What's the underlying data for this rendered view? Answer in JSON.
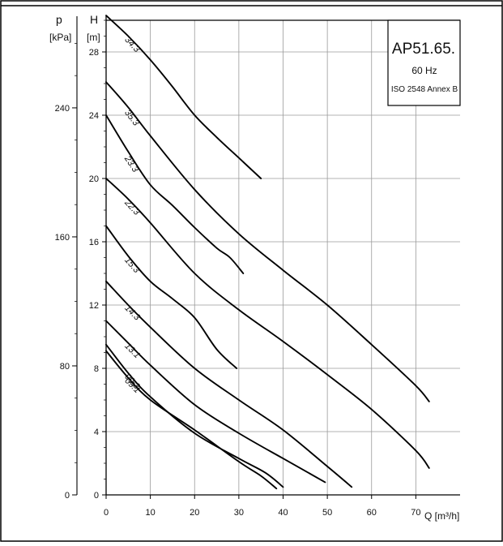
{
  "chart_data": {
    "type": "line",
    "title": "AP51.65.",
    "subtitle_lines": [
      "60 Hz",
      "ISO 2548 Annex B"
    ],
    "xlabel": "Q [m³/h]",
    "ylabel_left": {
      "sym": "p",
      "unit": "[kPa]"
    },
    "ylabel_right": {
      "sym": "H",
      "unit": "[m]"
    },
    "x_ticks": [
      "0",
      "10",
      "20",
      "30",
      "40",
      "50",
      "60",
      "70"
    ],
    "h_ticks": [
      "0",
      "4",
      "8",
      "12",
      "16",
      "20",
      "24",
      "28"
    ],
    "p_ticks": [
      "0",
      "80",
      "160",
      "240"
    ],
    "xlim": [
      0,
      80
    ],
    "ylim": [
      0,
      30
    ],
    "grid": true,
    "series": [
      {
        "name": "34.3",
        "x": [
          0,
          5,
          10,
          15,
          20,
          25,
          30,
          35
        ],
        "y": [
          30.3,
          29.0,
          27.5,
          25.8,
          24.0,
          22.6,
          21.3,
          20.0
        ]
      },
      {
        "name": "35.3",
        "x": [
          0,
          5,
          10,
          20,
          30,
          40,
          50,
          60,
          70,
          73
        ],
        "y": [
          26.1,
          24.5,
          22.7,
          19.3,
          16.5,
          14.2,
          12.0,
          9.5,
          6.9,
          5.9
        ]
      },
      {
        "name": "23.3",
        "x": [
          0,
          5,
          10,
          15,
          20,
          25,
          28,
          31
        ],
        "y": [
          24.0,
          21.7,
          19.6,
          18.3,
          16.9,
          15.6,
          15.0,
          14.0
        ]
      },
      {
        "name": "22.3",
        "x": [
          0,
          5,
          10,
          20,
          30,
          40,
          50,
          60,
          70,
          73
        ],
        "y": [
          20.0,
          18.7,
          17.2,
          14.0,
          11.7,
          9.7,
          7.6,
          5.4,
          2.8,
          1.7
        ]
      },
      {
        "name": "15.3",
        "x": [
          0,
          5,
          10,
          15,
          20,
          25,
          29.5
        ],
        "y": [
          17.0,
          15.1,
          13.5,
          12.4,
          11.2,
          9.2,
          8.0
        ]
      },
      {
        "name": "14.3",
        "x": [
          0,
          5,
          10,
          20,
          30,
          40,
          50,
          55.5
        ],
        "y": [
          13.5,
          12.0,
          10.6,
          8.0,
          6.0,
          4.1,
          1.8,
          0.5
        ]
      },
      {
        "name": "13.1",
        "x": [
          0,
          5,
          10,
          20,
          30,
          40,
          49.5
        ],
        "y": [
          11.0,
          9.6,
          8.2,
          5.7,
          3.9,
          2.3,
          0.8
        ]
      },
      {
        "name": "09.3",
        "x": [
          0,
          5,
          10,
          20,
          30,
          36,
          40
        ],
        "y": [
          9.5,
          7.7,
          6.2,
          3.9,
          2.3,
          1.4,
          0.5
        ]
      },
      {
        "name": "09.1",
        "x": [
          0,
          5,
          10,
          20,
          30,
          35,
          38.5
        ],
        "y": [
          9.1,
          7.4,
          6.0,
          4.1,
          2.1,
          1.2,
          0.4
        ]
      }
    ]
  }
}
